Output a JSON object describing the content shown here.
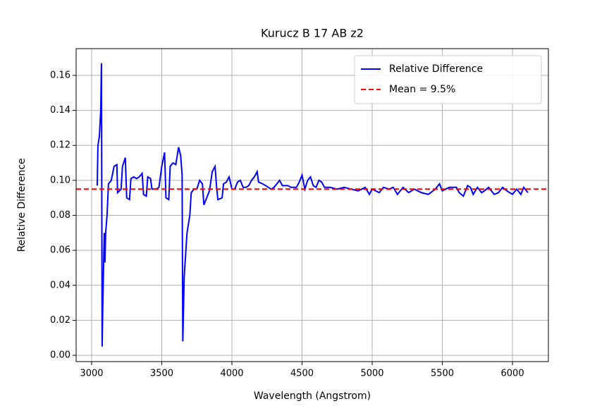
{
  "chart_data": {
    "type": "line",
    "title": "Kurucz B 17 AB z2",
    "x_label": "Wavelength (Angstrom)",
    "y_label": "Relative Difference",
    "xlim": [
      2889.5,
      6256
    ],
    "ylim": [
      -0.0036,
      0.1753
    ],
    "xticks": [
      3000,
      3500,
      4000,
      4500,
      5000,
      5500,
      6000
    ],
    "yticks": [
      {
        "value": 0,
        "label": "0.00"
      },
      0.02,
      0.04,
      0.06,
      0.08,
      {
        "value": 0.1,
        "label": "0.10"
      },
      0.12,
      0.14,
      0.16
    ],
    "grid": true,
    "legend": "upper right",
    "x": [
      3040,
      3045,
      3055,
      3065,
      3070,
      3075,
      3080,
      3090,
      3095,
      3100,
      3110,
      3120,
      3140,
      3160,
      3180,
      3185,
      3210,
      3220,
      3240,
      3250,
      3270,
      3280,
      3300,
      3320,
      3340,
      3360,
      3370,
      3390,
      3400,
      3420,
      3430,
      3460,
      3480,
      3500,
      3520,
      3530,
      3550,
      3560,
      3580,
      3600,
      3620,
      3635,
      3645,
      3650,
      3660,
      3680,
      3700,
      3710,
      3730,
      3750,
      3770,
      3790,
      3800,
      3820,
      3840,
      3860,
      3880,
      3890,
      3900,
      3930,
      3940,
      3960,
      3980,
      4000,
      4020,
      4040,
      4060,
      4080,
      4100,
      4120,
      4140,
      4160,
      4180,
      4190,
      4220,
      4240,
      4260,
      4280,
      4300,
      4320,
      4340,
      4360,
      4380,
      4400,
      4420,
      4440,
      4460,
      4480,
      4500,
      4520,
      4540,
      4560,
      4580,
      4600,
      4620,
      4640,
      4660,
      4700,
      4750,
      4800,
      4850,
      4900,
      4950,
      4980,
      5000,
      5050,
      5080,
      5120,
      5150,
      5180,
      5220,
      5260,
      5300,
      5350,
      5400,
      5450,
      5480,
      5500,
      5550,
      5600,
      5620,
      5650,
      5680,
      5700,
      5720,
      5750,
      5780,
      5800,
      5830,
      5870,
      5900,
      5930,
      5960,
      6000,
      6030,
      6060,
      6080,
      6110
    ],
    "series": [
      {
        "name": "Relative Difference",
        "color": "#0000ff",
        "style": "solid",
        "values": [
          0.097,
          0.12,
          0.125,
          0.14,
          0.167,
          0.005,
          0.03,
          0.07,
          0.053,
          0.07,
          0.08,
          0.098,
          0.1,
          0.108,
          0.109,
          0.093,
          0.095,
          0.108,
          0.113,
          0.09,
          0.089,
          0.101,
          0.102,
          0.101,
          0.102,
          0.104,
          0.092,
          0.091,
          0.102,
          0.101,
          0.095,
          0.095,
          0.096,
          0.108,
          0.116,
          0.09,
          0.089,
          0.108,
          0.11,
          0.109,
          0.119,
          0.114,
          0.103,
          0.008,
          0.045,
          0.07,
          0.08,
          0.093,
          0.095,
          0.095,
          0.1,
          0.098,
          0.086,
          0.09,
          0.094,
          0.105,
          0.108,
          0.097,
          0.089,
          0.09,
          0.098,
          0.099,
          0.102,
          0.095,
          0.095,
          0.099,
          0.1,
          0.096,
          0.096,
          0.097,
          0.1,
          0.102,
          0.105,
          0.099,
          0.098,
          0.097,
          0.096,
          0.095,
          0.096,
          0.098,
          0.1,
          0.097,
          0.097,
          0.097,
          0.096,
          0.096,
          0.096,
          0.099,
          0.103,
          0.095,
          0.1,
          0.102,
          0.097,
          0.096,
          0.1,
          0.099,
          0.096,
          0.096,
          0.095,
          0.096,
          0.095,
          0.094,
          0.096,
          0.092,
          0.095,
          0.093,
          0.096,
          0.095,
          0.096,
          0.092,
          0.096,
          0.093,
          0.095,
          0.093,
          0.092,
          0.095,
          0.098,
          0.094,
          0.096,
          0.096,
          0.093,
          0.091,
          0.097,
          0.096,
          0.092,
          0.096,
          0.093,
          0.094,
          0.096,
          0.092,
          0.093,
          0.096,
          0.094,
          0.092,
          0.095,
          0.092,
          0.096,
          0.093
        ]
      }
    ],
    "reference_lines": [
      {
        "name": "Mean = 9.5%",
        "color": "#ff0000",
        "style": "dashed",
        "value": 0.095
      }
    ]
  }
}
